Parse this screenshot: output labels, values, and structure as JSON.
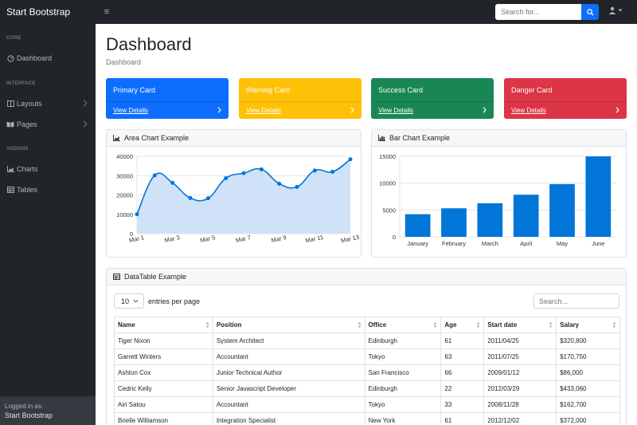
{
  "app": {
    "brand": "Start Bootstrap"
  },
  "topnav": {
    "search_placeholder": "Search for..."
  },
  "sidebar": {
    "headings": [
      "CORE",
      "INTERFACE",
      "ADDONS"
    ],
    "items": [
      {
        "label": "Dashboard",
        "icon": "gauge-icon"
      },
      {
        "label": "Layouts",
        "icon": "columns-icon"
      },
      {
        "label": "Pages",
        "icon": "book-icon"
      },
      {
        "label": "Charts",
        "icon": "chart-area-icon"
      },
      {
        "label": "Tables",
        "icon": "table-icon"
      }
    ],
    "footer": {
      "label": "Logged in as:",
      "name": "Start Bootstrap"
    }
  },
  "main": {
    "title": "Dashboard",
    "breadcrumb": "Dashboard",
    "cards": [
      {
        "title": "Primary Card",
        "link": "View Details",
        "color": "#0d6efd"
      },
      {
        "title": "Warning Card",
        "link": "View Details",
        "color": "#ffc107"
      },
      {
        "title": "Success Card",
        "link": "View Details",
        "color": "#198754"
      },
      {
        "title": "Danger Card",
        "link": "View Details",
        "color": "#dc3545"
      }
    ]
  },
  "area_panel": {
    "title": "Area Chart Example"
  },
  "bar_panel": {
    "title": "Bar Chart Example"
  },
  "chart_data": [
    {
      "type": "area",
      "x": [
        "Mar 1",
        "Mar 2",
        "Mar 3",
        "Mar 4",
        "Mar 5",
        "Mar 6",
        "Mar 7",
        "Mar 8",
        "Mar 9",
        "Mar 10",
        "Mar 11",
        "Mar 12",
        "Mar 13"
      ],
      "xticks": [
        "Mar 1",
        "Mar 3",
        "Mar 5",
        "Mar 7",
        "Mar 9",
        "Mar 11",
        "Mar 13"
      ],
      "values": [
        10000,
        30162,
        26263,
        18394,
        18287,
        28682,
        31274,
        33259,
        25849,
        24159,
        32651,
        31984,
        38451
      ],
      "ylim": [
        0,
        40000
      ],
      "yticks": [
        0,
        10000,
        20000,
        30000,
        40000
      ],
      "color": "#0275d8",
      "fill": "#cfe2f7"
    },
    {
      "type": "bar",
      "categories": [
        "January",
        "February",
        "March",
        "April",
        "May",
        "June"
      ],
      "values": [
        4215,
        5312,
        6251,
        7841,
        9821,
        14984
      ],
      "ylim": [
        0,
        15000
      ],
      "yticks": [
        0,
        5000,
        10000,
        15000
      ],
      "color": "#0275d8"
    }
  ],
  "datatable": {
    "title": "DataTable Example",
    "page_size": "10",
    "entries_label": "entries per page",
    "search_placeholder": "Search...",
    "columns": [
      "Name",
      "Position",
      "Office",
      "Age",
      "Start date",
      "Salary"
    ],
    "rows": [
      [
        "Tiger Nixon",
        "System Architect",
        "Edinburgh",
        "61",
        "2011/04/25",
        "$320,800"
      ],
      [
        "Garrett Winters",
        "Accountant",
        "Tokyo",
        "63",
        "2011/07/25",
        "$170,750"
      ],
      [
        "Ashton Cox",
        "Junior Technical Author",
        "San Francisco",
        "66",
        "2009/01/12",
        "$86,000"
      ],
      [
        "Cedric Kelly",
        "Senior Javascript Developer",
        "Edinburgh",
        "22",
        "2012/03/29",
        "$433,060"
      ],
      [
        "Airi Satou",
        "Accountant",
        "Tokyo",
        "33",
        "2008/11/28",
        "$162,700"
      ],
      [
        "Brielle Williamson",
        "Integration Specialist",
        "New York",
        "61",
        "2012/12/02",
        "$372,000"
      ]
    ]
  }
}
